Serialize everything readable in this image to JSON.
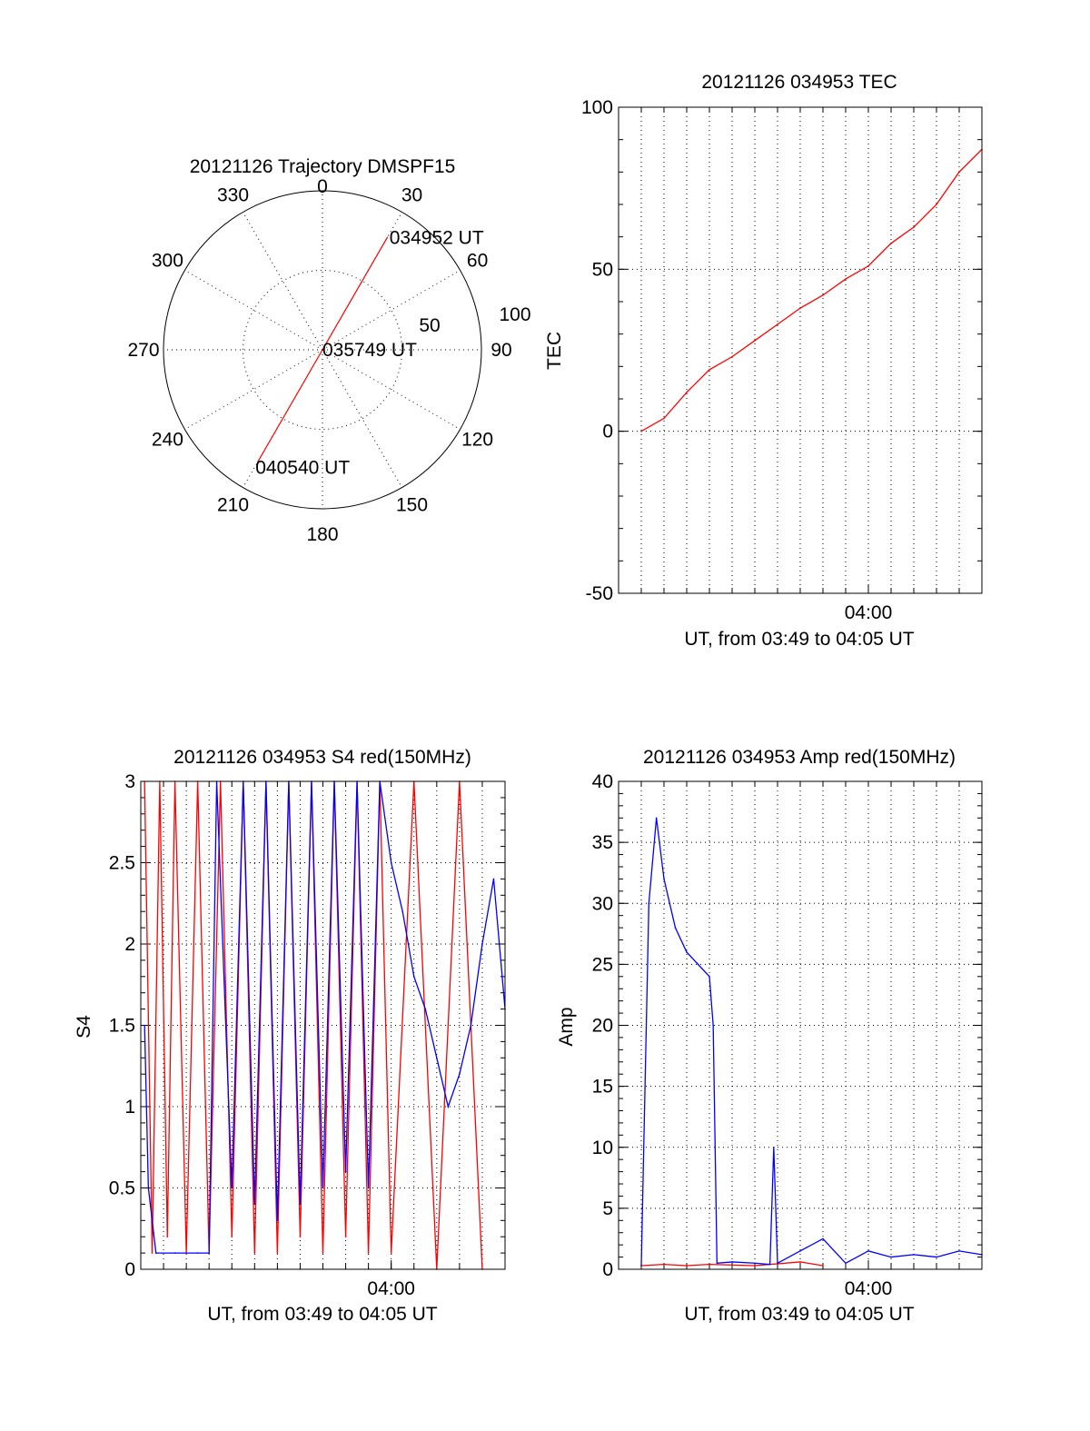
{
  "chart_data": [
    {
      "type": "polar",
      "title": "20121126 Trajectory DMSPF15",
      "angle_labels": [
        "0",
        "30",
        "60",
        "90",
        "120",
        "150",
        "180",
        "210",
        "240",
        "270",
        "300",
        "330"
      ],
      "radius_labels": [
        "50",
        "100"
      ],
      "rlim": [
        0,
        100
      ],
      "grid": true,
      "trajectory": {
        "color": "#ff0000",
        "points": [
          {
            "azimuth": 30,
            "radius": 82
          },
          {
            "azimuth": 0,
            "radius": 0
          },
          {
            "azimuth": 210,
            "radius": 82
          }
        ]
      },
      "annotations": [
        "034952 UT",
        "035749 UT",
        "040540 UT"
      ]
    },
    {
      "type": "line",
      "title": "20121126 034953 TEC",
      "xlabel": "UT, from 03:49 to 04:05 UT",
      "ylabel": "TEC",
      "xlim": [
        "03:49",
        "04:05"
      ],
      "ylim": [
        -50,
        100
      ],
      "yticks": [
        "-50",
        "0",
        "50",
        "100"
      ],
      "xticks": [
        "04:00"
      ],
      "grid": true,
      "series": [
        {
          "color": "#ff0000",
          "x": [
            "03:50:00",
            "03:51:00",
            "03:52:00",
            "03:53:00",
            "03:54:00",
            "03:55:00",
            "03:56:00",
            "03:57:00",
            "03:58:00",
            "03:59:00",
            "04:00:00",
            "04:01:00",
            "04:02:00",
            "04:03:00",
            "04:04:00",
            "04:05:00"
          ],
          "values": [
            0,
            4,
            12,
            19,
            23,
            28,
            33,
            38,
            42,
            47,
            51,
            58,
            63,
            70,
            80,
            87
          ]
        }
      ]
    },
    {
      "type": "line",
      "title": "20121126 034953 S4 red(150MHz)",
      "xlabel": "UT, from 03:49 to 04:05 UT",
      "ylabel": "S4",
      "xlim": [
        "03:49",
        "04:05"
      ],
      "ylim": [
        0,
        3
      ],
      "yticks": [
        "0",
        "0.5",
        "1",
        "1.5",
        "2",
        "2.5",
        "3"
      ],
      "xticks": [
        "04:00"
      ],
      "grid": true,
      "series": [
        {
          "color": "#ff0000",
          "x": [
            "03:49:10",
            "03:49:30",
            "03:49:50",
            "03:50:10",
            "03:50:30",
            "03:51:00",
            "03:51:30",
            "03:52:00",
            "03:52:30",
            "03:53:00",
            "03:53:30",
            "03:54:00",
            "03:54:30",
            "03:55:00",
            "03:55:30",
            "03:56:00",
            "03:56:30",
            "03:57:00",
            "03:57:30",
            "03:58:00",
            "03:58:30",
            "03:59:00",
            "03:59:30",
            "04:00:00",
            "04:01:00",
            "04:02:00",
            "04:03:00",
            "04:04:00"
          ],
          "values": [
            3,
            0.1,
            3,
            0.2,
            3,
            0.1,
            3,
            0.1,
            3,
            0.2,
            3,
            0.1,
            3,
            0.1,
            3,
            0.2,
            3,
            0.1,
            3,
            0.2,
            3,
            0.1,
            3,
            0.1,
            3,
            0,
            3,
            0
          ]
        },
        {
          "color": "#0000ff",
          "x": [
            "03:49:10",
            "03:49:20",
            "03:49:40",
            "03:50:30",
            "03:51:30",
            "03:52:00",
            "03:52:20",
            "03:53:00",
            "03:53:30",
            "03:54:00",
            "03:54:30",
            "03:55:00",
            "03:55:30",
            "03:56:00",
            "03:56:30",
            "03:57:00",
            "03:57:30",
            "03:58:00",
            "03:58:30",
            "03:59:00",
            "03:59:30",
            "04:00:00",
            "04:00:30",
            "04:01:00",
            "04:01:30",
            "04:02:00",
            "04:02:30",
            "04:03:00",
            "04:03:30",
            "04:04:00",
            "04:04:30",
            "04:05:00"
          ],
          "values": [
            1.5,
            0.5,
            0.1,
            0.1,
            0.1,
            0.1,
            3,
            0.5,
            3,
            0.4,
            3,
            0.3,
            3,
            0.4,
            3,
            0.5,
            3,
            0.6,
            3,
            0.5,
            3,
            2.5,
            2.2,
            1.8,
            1.6,
            1.3,
            1.0,
            1.2,
            1.5,
            2.0,
            2.4,
            1.6
          ]
        }
      ]
    },
    {
      "type": "line",
      "title": "20121126 034953 Amp red(150MHz)",
      "xlabel": "UT, from 03:49 to 04:05 UT",
      "ylabel": "Amp",
      "xlim": [
        "03:49",
        "04:05"
      ],
      "ylim": [
        0,
        40
      ],
      "yticks": [
        "0",
        "5",
        "10",
        "15",
        "20",
        "25",
        "30",
        "35",
        "40"
      ],
      "xticks": [
        "04:00"
      ],
      "grid": true,
      "series": [
        {
          "color": "#ff0000",
          "x": [
            "03:50:00",
            "03:51:00",
            "03:52:00",
            "03:53:00",
            "03:55:00",
            "03:57:00",
            "03:58:00"
          ],
          "values": [
            0.3,
            0.4,
            0.3,
            0.4,
            0.3,
            0.6,
            0.3
          ]
        },
        {
          "color": "#0000ff",
          "x": [
            "03:50:00",
            "03:50:20",
            "03:50:40",
            "03:51:00",
            "03:51:30",
            "03:52:00",
            "03:52:30",
            "03:53:00",
            "03:53:10",
            "03:53:20",
            "03:54:00",
            "03:55:00",
            "03:55:40",
            "03:55:50",
            "03:56:00",
            "03:57:00",
            "03:58:00",
            "03:59:00",
            "04:00:00",
            "04:01:00",
            "04:02:00",
            "04:03:00",
            "04:04:00",
            "04:05:00"
          ],
          "values": [
            0.3,
            30,
            37,
            32,
            28,
            26,
            25,
            24,
            20,
            0.5,
            0.6,
            0.5,
            0.4,
            10,
            0.5,
            1.5,
            2.5,
            0.5,
            1.5,
            1.0,
            1.2,
            1.0,
            1.5,
            1.2
          ]
        }
      ]
    }
  ]
}
